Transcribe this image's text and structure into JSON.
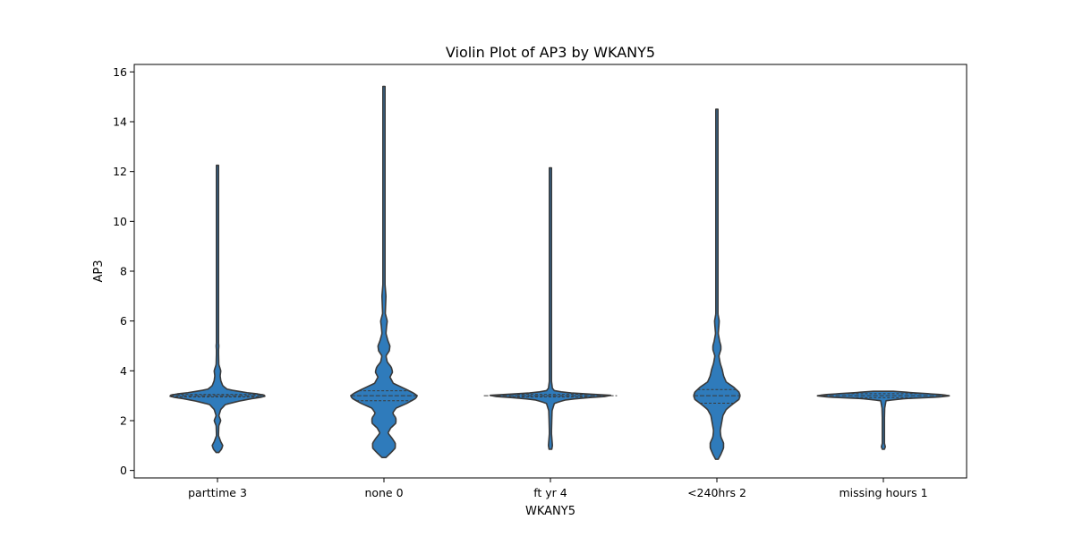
{
  "chart_data": {
    "type": "violin",
    "title": "Violin Plot of AP3 by WKANY5",
    "xlabel": "WKANY5",
    "ylabel": "AP3",
    "ylim": [
      -0.3,
      16.3
    ],
    "yticks": [
      0,
      2,
      4,
      6,
      8,
      10,
      12,
      14,
      16
    ],
    "grid": false,
    "fill_color": "#2f7bbb",
    "edge_color": "#3a3a3a",
    "categories": [
      "parttime 3",
      "none 0",
      "ft yr 4",
      "<240hrs 2",
      "missing hours 1"
    ],
    "violins": [
      {
        "category": "parttime 3",
        "min": 0.72,
        "max": 12.25,
        "median": 3.0,
        "q1": 2.95,
        "q3": 3.05,
        "density": [
          [
            0.72,
            0.02
          ],
          [
            0.85,
            0.06
          ],
          [
            1.0,
            0.08
          ],
          [
            1.15,
            0.05
          ],
          [
            1.4,
            0.015
          ],
          [
            1.8,
            0.02
          ],
          [
            2.0,
            0.05
          ],
          [
            2.2,
            0.02
          ],
          [
            2.45,
            0.05
          ],
          [
            2.65,
            0.12
          ],
          [
            2.8,
            0.35
          ],
          [
            2.9,
            0.55
          ],
          [
            2.95,
            0.7
          ],
          [
            3.0,
            0.72
          ],
          [
            3.05,
            0.68
          ],
          [
            3.12,
            0.45
          ],
          [
            3.25,
            0.15
          ],
          [
            3.4,
            0.08
          ],
          [
            3.6,
            0.05
          ],
          [
            3.8,
            0.04
          ],
          [
            4.0,
            0.05
          ],
          [
            4.25,
            0.02
          ],
          [
            4.8,
            0.015
          ],
          [
            5.0,
            0.02
          ],
          [
            5.3,
            0.01
          ],
          [
            7.0,
            0.01
          ],
          [
            10.0,
            0.01
          ],
          [
            12.25,
            0.01
          ]
        ]
      },
      {
        "category": "none 0",
        "min": 0.52,
        "max": 15.42,
        "median": 3.0,
        "q1": 2.8,
        "q3": 3.2,
        "density": [
          [
            0.52,
            0.03
          ],
          [
            0.7,
            0.1
          ],
          [
            0.9,
            0.17
          ],
          [
            1.1,
            0.17
          ],
          [
            1.3,
            0.12
          ],
          [
            1.5,
            0.06
          ],
          [
            1.7,
            0.1
          ],
          [
            1.9,
            0.18
          ],
          [
            2.1,
            0.18
          ],
          [
            2.3,
            0.13
          ],
          [
            2.5,
            0.18
          ],
          [
            2.7,
            0.35
          ],
          [
            2.9,
            0.48
          ],
          [
            3.0,
            0.5
          ],
          [
            3.1,
            0.45
          ],
          [
            3.3,
            0.3
          ],
          [
            3.5,
            0.14
          ],
          [
            3.75,
            0.09
          ],
          [
            3.95,
            0.13
          ],
          [
            4.15,
            0.11
          ],
          [
            4.35,
            0.05
          ],
          [
            4.6,
            0.03
          ],
          [
            4.8,
            0.08
          ],
          [
            5.0,
            0.09
          ],
          [
            5.2,
            0.06
          ],
          [
            5.5,
            0.03
          ],
          [
            5.8,
            0.04
          ],
          [
            6.0,
            0.05
          ],
          [
            6.3,
            0.02
          ],
          [
            7.0,
            0.03
          ],
          [
            7.5,
            0.015
          ],
          [
            9.0,
            0.01
          ],
          [
            12.0,
            0.01
          ],
          [
            15.42,
            0.01
          ]
        ]
      },
      {
        "category": "ft yr 4",
        "min": 0.85,
        "max": 12.15,
        "median": 3.0,
        "q1": 2.95,
        "q3": 3.05,
        "density": [
          [
            0.85,
            0.02
          ],
          [
            1.0,
            0.03
          ],
          [
            1.5,
            0.015
          ],
          [
            2.0,
            0.02
          ],
          [
            2.4,
            0.025
          ],
          [
            2.7,
            0.06
          ],
          [
            2.85,
            0.25
          ],
          [
            2.95,
            0.7
          ],
          [
            3.0,
            1.0
          ],
          [
            3.05,
            0.7
          ],
          [
            3.12,
            0.25
          ],
          [
            3.2,
            0.06
          ],
          [
            3.3,
            0.03
          ],
          [
            3.6,
            0.015
          ],
          [
            5.0,
            0.01
          ],
          [
            8.0,
            0.01
          ],
          [
            12.15,
            0.01
          ]
        ]
      },
      {
        "category": "<240hrs 2",
        "min": 0.45,
        "max": 14.5,
        "median": 3.0,
        "q1": 2.7,
        "q3": 3.25,
        "density": [
          [
            0.45,
            0.02
          ],
          [
            0.65,
            0.06
          ],
          [
            0.9,
            0.1
          ],
          [
            1.1,
            0.1
          ],
          [
            1.35,
            0.06
          ],
          [
            1.6,
            0.05
          ],
          [
            1.9,
            0.07
          ],
          [
            2.2,
            0.09
          ],
          [
            2.45,
            0.14
          ],
          [
            2.65,
            0.23
          ],
          [
            2.85,
            0.33
          ],
          [
            3.0,
            0.35
          ],
          [
            3.15,
            0.33
          ],
          [
            3.35,
            0.25
          ],
          [
            3.55,
            0.14
          ],
          [
            3.8,
            0.1
          ],
          [
            4.05,
            0.08
          ],
          [
            4.3,
            0.05
          ],
          [
            4.6,
            0.03
          ],
          [
            4.85,
            0.06
          ],
          [
            5.0,
            0.06
          ],
          [
            5.2,
            0.04
          ],
          [
            5.5,
            0.02
          ],
          [
            5.8,
            0.03
          ],
          [
            6.0,
            0.035
          ],
          [
            6.3,
            0.015
          ],
          [
            8.0,
            0.01
          ],
          [
            11.0,
            0.01
          ],
          [
            14.5,
            0.01
          ]
        ]
      },
      {
        "category": "missing hours 1",
        "min": 0.85,
        "max": 3.18,
        "median": 3.0,
        "q1": 2.92,
        "q3": 3.08,
        "density": [
          [
            0.85,
            0.015
          ],
          [
            0.95,
            0.03
          ],
          [
            1.1,
            0.015
          ],
          [
            1.5,
            0.015
          ],
          [
            2.0,
            0.015
          ],
          [
            2.5,
            0.02
          ],
          [
            2.8,
            0.04
          ],
          [
            2.88,
            0.3
          ],
          [
            2.95,
            0.85
          ],
          [
            3.0,
            1.0
          ],
          [
            3.05,
            0.85
          ],
          [
            3.12,
            0.45
          ],
          [
            3.18,
            0.15
          ]
        ]
      }
    ]
  }
}
